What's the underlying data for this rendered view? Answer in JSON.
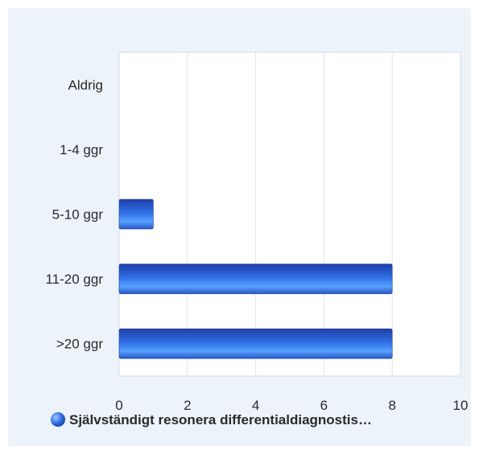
{
  "chart_data": {
    "type": "bar",
    "orientation": "horizontal",
    "categories": [
      "Aldrig",
      "1-4 ggr",
      "5-10 ggr",
      "11-20 ggr",
      ">20 ggr"
    ],
    "series": [
      {
        "name": "Självständigt resonera differentialdiagnostis…",
        "values": [
          0,
          0,
          1,
          8,
          8
        ]
      }
    ],
    "x_ticks": [
      "0",
      "2",
      "4",
      "6",
      "8",
      "10"
    ],
    "xlim": [
      0,
      10
    ],
    "grid": true,
    "legend_position": "bottom",
    "colors": {
      "panel_background": "#ecf3fa",
      "plot_background": "#ffffff",
      "bar_dark": "#1e4fbf",
      "bar_light": "#4f90ff",
      "gridline": "#e1e4ea",
      "axis_text": "#2a2a2a"
    }
  }
}
